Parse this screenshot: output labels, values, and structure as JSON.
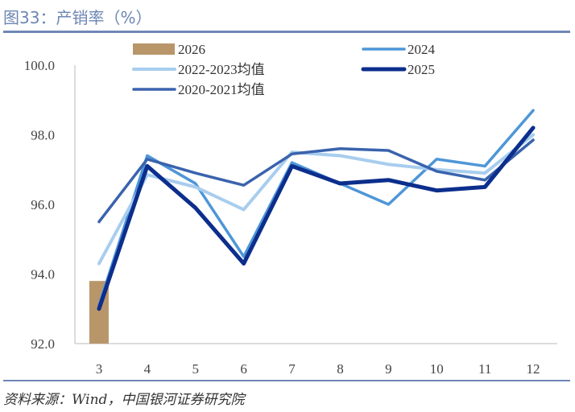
{
  "header": {
    "title": "图33：产销率（%）"
  },
  "footer": {
    "source": "资料来源：Wind，中国银河证券研究院"
  },
  "chart_data": {
    "type": "line",
    "title": "产销率（%）",
    "xlabel": "",
    "ylabel": "",
    "categories": [
      "3",
      "4",
      "5",
      "6",
      "7",
      "8",
      "9",
      "10",
      "11",
      "12"
    ],
    "ylim": [
      92.0,
      100.0
    ],
    "yticks": [
      "92.0",
      "94.0",
      "96.0",
      "98.0",
      "100.0"
    ],
    "ytick_values": [
      92,
      94,
      96,
      98,
      100
    ],
    "grid": false,
    "legend_position": "top",
    "bar_series": {
      "name": "2026",
      "color": "#b8966a",
      "values": [
        93.8,
        null,
        null,
        null,
        null,
        null,
        null,
        null,
        null,
        null
      ]
    },
    "series": [
      {
        "name": "2024",
        "color": "#4e96d8",
        "width": 3.5,
        "values": [
          93.1,
          97.4,
          96.6,
          94.5,
          97.2,
          96.6,
          96.0,
          97.3,
          97.1,
          98.7
        ]
      },
      {
        "name": "2022-2023均值",
        "color": "#a8cdee",
        "width": 4,
        "values": [
          94.3,
          96.85,
          96.5,
          95.85,
          97.5,
          97.4,
          97.15,
          97.0,
          96.9,
          98.0
        ]
      },
      {
        "name": "2020-2021均值",
        "color": "#3a63ad",
        "width": 3.5,
        "values": [
          95.5,
          97.3,
          96.9,
          96.55,
          97.45,
          97.6,
          97.55,
          96.95,
          96.7,
          97.85
        ]
      },
      {
        "name": "2025",
        "color": "#0c2e8c",
        "width": 5,
        "values": [
          93.0,
          97.1,
          95.9,
          94.3,
          97.1,
          96.6,
          96.7,
          96.4,
          96.5,
          98.2
        ]
      }
    ],
    "legend_order": [
      "2026",
      "2024",
      "2022-2023均值",
      "2025",
      "2020-2021均值"
    ]
  }
}
